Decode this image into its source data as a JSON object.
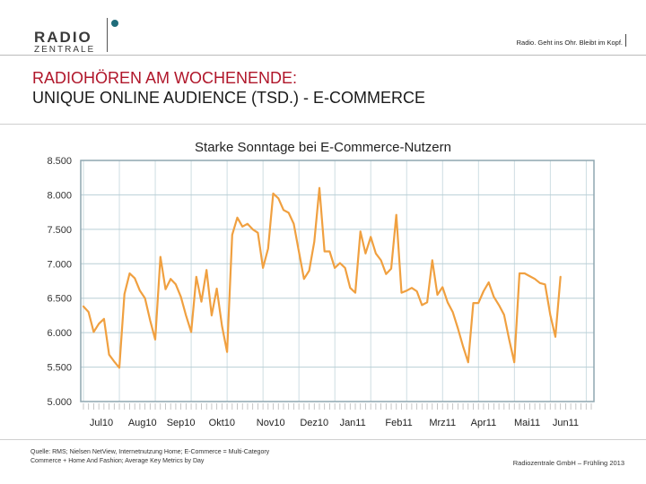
{
  "header": {
    "logo_top": "RADIO",
    "logo_bottom": "ZENTRALE",
    "slogan": "Radio. Geht ins Ohr. Bleibt im Kopf."
  },
  "title": {
    "line1": "RADIOHÖREN AM WOCHENENDE:",
    "line2": "UNIQUE ONLINE AUDIENCE (TSD.) - E-COMMERCE"
  },
  "footer": {
    "source": "Quelle: RMS; Nielsen NetView, Internetnutzung Home; E-Commerce = Multi-Category Commerce + Home And Fashion; Average Key Metrics by Day",
    "copyright": "Radiozentrale GmbH – Frühling 2013"
  },
  "colors": {
    "line": "#f0a040",
    "grid": "#b9cfd6",
    "frame": "#8fa7b0",
    "title_red": "#b0162a"
  },
  "chart_data": {
    "type": "line",
    "title": "Starke Sonntage bei E-Commerce-Nutzern",
    "ylim": [
      5000,
      8500
    ],
    "y_ticks": [
      "5.000",
      "5.500",
      "6.000",
      "6.500",
      "7.000",
      "7.500",
      "8.000",
      "8.500"
    ],
    "y_tick_values": [
      5000,
      5500,
      6000,
      6500,
      7000,
      7500,
      8000,
      8500
    ],
    "grid": true,
    "month_labels": [
      "Jul10",
      "Aug10",
      "Sep10",
      "Okt10",
      "Nov10",
      "Dez10",
      "Jan11",
      "Feb11",
      "Mrz11",
      "Apr11",
      "Mai11",
      "Jun11"
    ],
    "month_label_positions": [
      3.5,
      11.5,
      19,
      27,
      36.5,
      45,
      52.5,
      61.5,
      70,
      78,
      86.5,
      94
    ],
    "x_count": 100,
    "values": [
      6380,
      6300,
      6010,
      6130,
      6200,
      5680,
      5580,
      5490,
      6560,
      6860,
      6790,
      6610,
      6500,
      6180,
      5900,
      7100,
      6630,
      6780,
      6700,
      6520,
      6250,
      6010,
      6810,
      6450,
      6910,
      6250,
      6640,
      6100,
      5720,
      7420,
      7670,
      7540,
      7580,
      7500,
      7450,
      6940,
      7220,
      8020,
      7950,
      7780,
      7740,
      7580,
      7180,
      6780,
      6900,
      7320,
      8100,
      7180,
      7180,
      6940,
      7010,
      6940,
      6650,
      6580,
      7470,
      7150,
      7390,
      7150,
      7050,
      6850,
      6930,
      7710,
      6580,
      6610,
      6650,
      6600,
      6400,
      6440,
      7050,
      6550,
      6660,
      6440,
      6300,
      6060,
      5800,
      5570,
      6430,
      6430,
      6600,
      6730,
      6520,
      6400,
      6260,
      5900,
      5570,
      6860,
      6860,
      6820,
      6780,
      6720,
      6700,
      6260,
      5940,
      6810
    ]
  }
}
